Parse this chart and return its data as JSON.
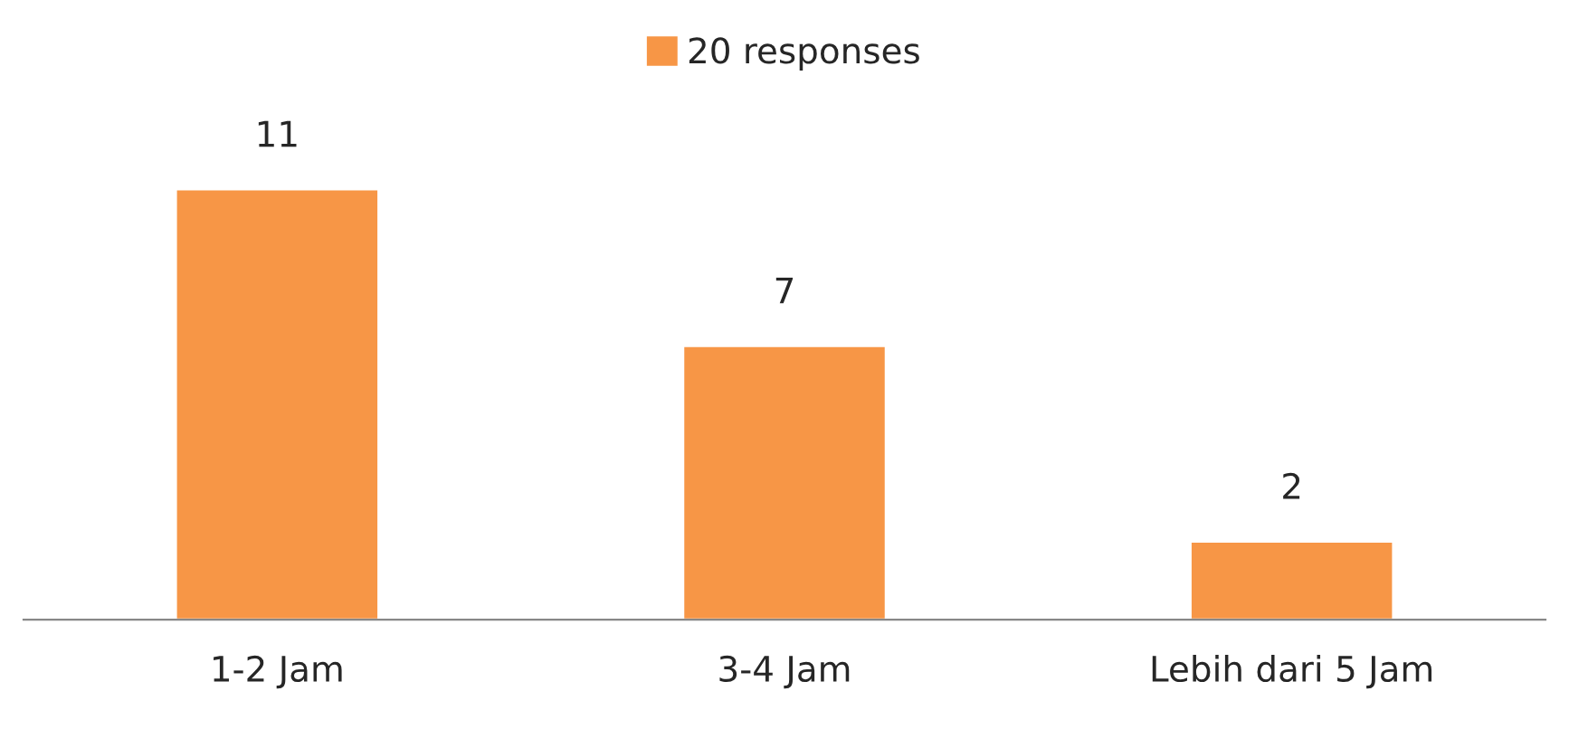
{
  "chart_data": {
    "type": "bar",
    "categories": [
      "1-2 Jam",
      "3-4 Jam",
      "Lebih dari 5 Jam"
    ],
    "series": [
      {
        "name": "20 responses",
        "color": "#f79646",
        "values": [
          11,
          7,
          2
        ]
      }
    ],
    "data_labels": true,
    "legend": "top",
    "grid": false,
    "tick_labels": "x"
  }
}
